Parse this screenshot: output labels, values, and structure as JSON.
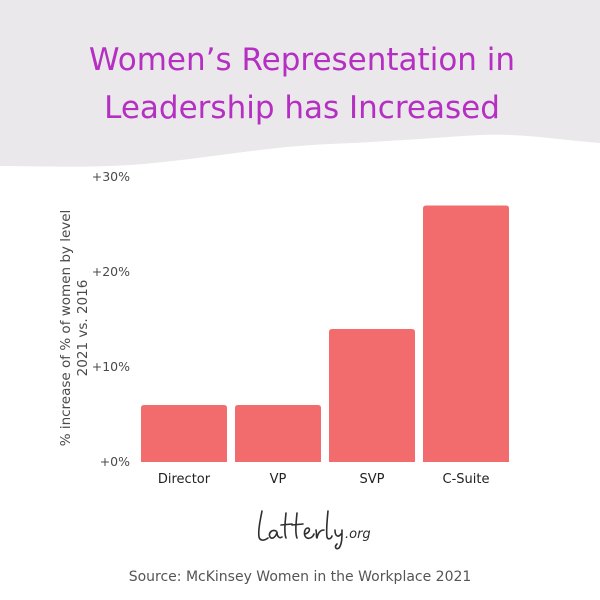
{
  "header": {
    "title_line1": "Women’s Representation in",
    "title_line2": "Leadership has Increased"
  },
  "colors": {
    "title": "#b42fc2",
    "header_background": "#ebe8ec",
    "bar": "#f26c6d",
    "text": "#4a4a4a"
  },
  "chart_data": {
    "type": "bar",
    "categories": [
      "Director",
      "VP",
      "SVP",
      "C-Suite"
    ],
    "values": [
      6,
      6,
      14,
      27
    ],
    "ylim": [
      0,
      30
    ],
    "yticks": [
      0,
      10,
      20,
      30
    ],
    "ytick_labels": [
      "+0%",
      "+10%",
      "+20%",
      "+30%"
    ],
    "ylabel_line1": "% increase of % of women by level",
    "ylabel_line2": "2021 vs. 2016",
    "grid": false,
    "legend": "none"
  },
  "logo": {
    "text": "Latterly.org"
  },
  "footer": {
    "source": "Source: McKinsey Women in the Workplace 2021"
  }
}
